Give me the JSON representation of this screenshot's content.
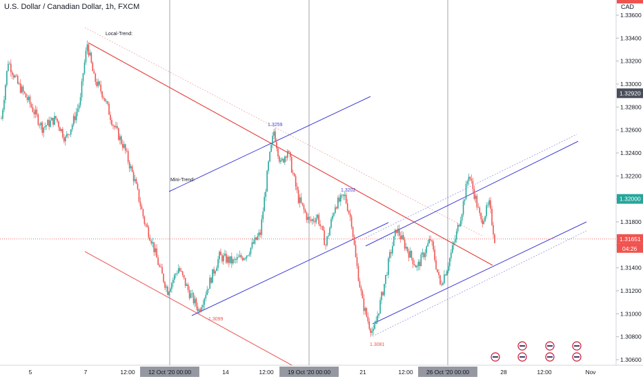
{
  "header": {
    "symbol_title": "U.S. Dollar / Canadian Dollar, 1h, FXCM",
    "currency": "CAD"
  },
  "colors": {
    "up": "#26a69a",
    "down": "#ef5350",
    "channel_red": "#e53935",
    "channel_blue": "#3f3fd6",
    "price_badge": "#ef5350",
    "green_badge": "#26a69a",
    "gray_badge": "#4a4e5a"
  },
  "chart_data": {
    "type": "candlestick",
    "instrument": "USD/CAD",
    "timeframe": "1h",
    "source": "FXCM",
    "y_axis": {
      "ticks": [
        "1.33600",
        "1.33400",
        "1.33200",
        "1.33000",
        "1.32800",
        "1.32600",
        "1.32400",
        "1.32200",
        "1.32000",
        "1.31800",
        "1.31600",
        "1.31400",
        "1.31200",
        "1.31000",
        "1.30800",
        "1.30600"
      ],
      "range": [
        1.3055,
        1.3375
      ]
    },
    "x_axis": {
      "ticks": [
        "5",
        "7",
        "12:00",
        "12 Oct '20  00:00",
        "14",
        "12:00",
        "19 Oct '20  00:00",
        "21",
        "12:00",
        "26 Oct '20  00:00",
        "28",
        "12:00",
        "Nov"
      ],
      "highlighted": [
        "12 Oct '20  00:00",
        "19 Oct '20  00:00",
        "26 Oct '20  00:00"
      ]
    },
    "price_labels": [
      {
        "value": "1.32920",
        "style": "gray"
      },
      {
        "value": "1.32000",
        "style": "green"
      },
      {
        "value": "1.31651",
        "style": "red",
        "countdown": "04:26"
      }
    ],
    "annotations": [
      {
        "text": "Local-Trend:",
        "kind": "label"
      },
      {
        "text": "Mini-Trend:",
        "kind": "label"
      },
      {
        "text": "1.3259",
        "kind": "swing_high"
      },
      {
        "text": "1.3202",
        "kind": "swing_high"
      },
      {
        "text": "1.3099",
        "kind": "swing_low"
      },
      {
        "text": "1.3081",
        "kind": "swing_low"
      }
    ],
    "series": [
      {
        "name": "USDCAD 1h",
        "anchors": [
          [
            0,
            1.327
          ],
          [
            5,
            1.332
          ],
          [
            12,
            1.33
          ],
          [
            20,
            1.3285
          ],
          [
            30,
            1.3262
          ],
          [
            40,
            1.327
          ],
          [
            47,
            1.3252
          ],
          [
            52,
            1.3265
          ],
          [
            58,
            1.3286
          ],
          [
            60,
            1.331
          ],
          [
            63,
            1.3335
          ],
          [
            68,
            1.3305
          ],
          [
            75,
            1.329
          ],
          [
            82,
            1.3265
          ],
          [
            90,
            1.3245
          ],
          [
            98,
            1.3215
          ],
          [
            105,
            1.318
          ],
          [
            110,
            1.3165
          ],
          [
            116,
            1.314
          ],
          [
            122,
            1.312
          ],
          [
            130,
            1.314
          ],
          [
            138,
            1.3118
          ],
          [
            145,
            1.3103
          ],
          [
            152,
            1.3125
          ],
          [
            160,
            1.315
          ],
          [
            170,
            1.3145
          ],
          [
            180,
            1.3152
          ],
          [
            190,
            1.317
          ],
          [
            196,
            1.323
          ],
          [
            200,
            1.3259
          ],
          [
            205,
            1.323
          ],
          [
            210,
            1.3243
          ],
          [
            218,
            1.32
          ],
          [
            226,
            1.318
          ],
          [
            232,
            1.3185
          ],
          [
            238,
            1.316
          ],
          [
            245,
            1.3195
          ],
          [
            252,
            1.3202
          ],
          [
            257,
            1.318
          ],
          [
            260,
            1.3148
          ],
          [
            265,
            1.311
          ],
          [
            270,
            1.309
          ],
          [
            273,
            1.3083
          ],
          [
            280,
            1.312
          ],
          [
            285,
            1.315
          ],
          [
            290,
            1.3174
          ],
          [
            296,
            1.316
          ],
          [
            305,
            1.314
          ],
          [
            315,
            1.3165
          ],
          [
            322,
            1.3125
          ],
          [
            327,
            1.314
          ],
          [
            333,
            1.3165
          ],
          [
            338,
            1.319
          ],
          [
            343,
            1.3222
          ],
          [
            348,
            1.32
          ],
          [
            352,
            1.318
          ],
          [
            358,
            1.3195
          ],
          [
            362,
            1.3165
          ]
        ]
      }
    ]
  }
}
